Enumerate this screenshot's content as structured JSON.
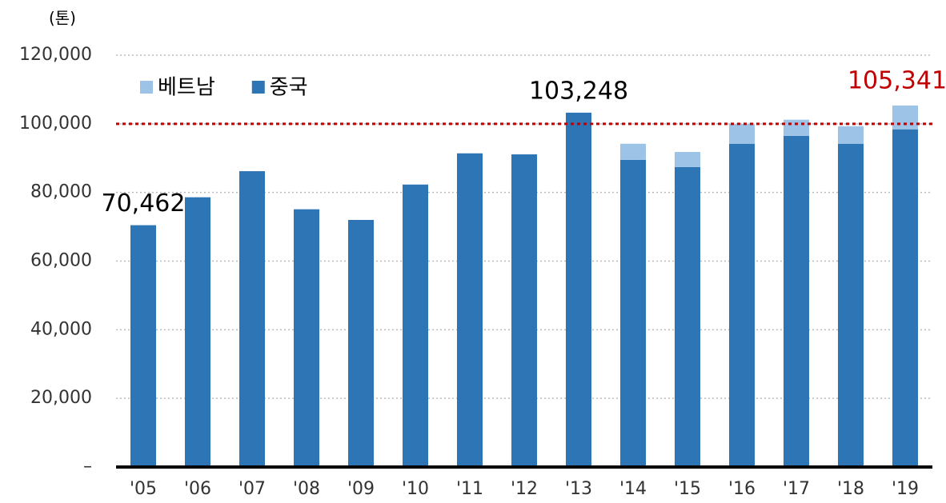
{
  "chart_data": {
    "type": "stacked_bar",
    "y_unit": "(톤)",
    "categories": [
      "'05",
      "'06",
      "'07",
      "'08",
      "'09",
      "'10",
      "'11",
      "'12",
      "'13",
      "'14",
      "'15",
      "'16",
      "'17",
      "'18",
      "'19"
    ],
    "series": [
      {
        "name": "중국",
        "color": "#2e75b6",
        "values": [
          70462,
          78600,
          86200,
          75100,
          72000,
          82300,
          91400,
          91100,
          103248,
          89500,
          87400,
          94200,
          96500,
          94200,
          98400
        ],
        "value_labels": [
          "70,462",
          null,
          null,
          null,
          null,
          null,
          null,
          null,
          "103,248",
          null,
          null,
          null,
          null,
          null,
          null
        ]
      },
      {
        "name": "베트남",
        "color": "#9dc3e6",
        "values": [
          0,
          0,
          0,
          0,
          0,
          0,
          0,
          0,
          0,
          4700,
          4400,
          5800,
          4700,
          5100,
          6941
        ]
      }
    ],
    "annotations": [
      {
        "text": "105,341",
        "category": 14,
        "value": 105341,
        "color": "#c00000"
      }
    ],
    "reference_line": {
      "value": 100000,
      "color": "#c00000"
    },
    "ylim": [
      0,
      120000
    ],
    "yticks": [
      {
        "value": 0,
        "label": "–"
      },
      {
        "value": 20000,
        "label": "20,000"
      },
      {
        "value": 40000,
        "label": "40,000"
      },
      {
        "value": 60000,
        "label": "60,000"
      },
      {
        "value": 80000,
        "label": "80,000"
      },
      {
        "value": 100000,
        "label": "100,000"
      },
      {
        "value": 120000,
        "label": "120,000"
      }
    ],
    "grid": true
  }
}
